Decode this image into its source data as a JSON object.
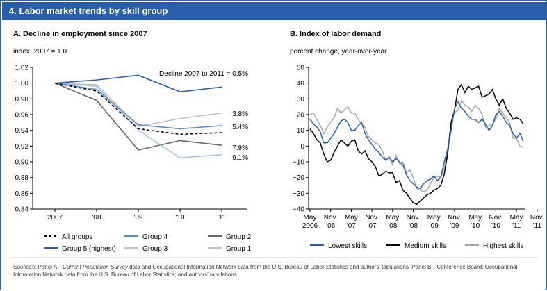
{
  "figure_title": "4. Labor market trends by skill group",
  "sources": {
    "prefix": "Sources:",
    "part1": " Panel A—",
    "italic": "Current Population Survey",
    "part2": " data and Occupational Information Network data from the U.S. Bureau of Labor Statistics and authors' tabulations. Panel B—Conference Board; Occupational Information Network data from the U.S. Bureau of Labor Statistics; and authors' tabulations."
  },
  "chart_data": [
    {
      "type": "line",
      "title": "A. Decline in employment since 2007",
      "unit_label": "index, 2007 = 1.0",
      "x": [
        2007,
        2008,
        2009,
        2010,
        2011
      ],
      "xticks": [
        "2007",
        "'08",
        "'09",
        "'10",
        "'11"
      ],
      "ylim": [
        0.84,
        1.02
      ],
      "yticks": [
        "1.02",
        "1.00",
        "0.98",
        "0.96",
        "0.94",
        "0.92",
        "0.90",
        "0.88",
        "0.86",
        "0.84"
      ],
      "annotations": [
        "Decline 2007 to 2011 = 0.5%",
        "3.8%",
        "5.4%",
        "7.9%",
        "9.1%"
      ],
      "series": [
        {
          "name": "All groups",
          "color": "#000000",
          "dash": "4,3",
          "values": [
            1.0,
            0.99,
            0.942,
            0.935,
            0.937
          ]
        },
        {
          "name": "Group 5 (highest)",
          "color": "#2a5ea8",
          "dash": "",
          "values": [
            1.0,
            1.004,
            1.01,
            0.989,
            0.995
          ]
        },
        {
          "name": "Group 4",
          "color": "#5b8ec9",
          "dash": "",
          "values": [
            1.0,
            0.992,
            0.947,
            0.942,
            0.946
          ]
        },
        {
          "name": "Group 3",
          "color": "#a9c4e6",
          "dash": "",
          "values": [
            1.0,
            0.996,
            0.94,
            0.905,
            0.909
          ]
        },
        {
          "name": "Group 2",
          "color": "#666666",
          "dash": "",
          "values": [
            1.0,
            0.978,
            0.915,
            0.927,
            0.921
          ]
        },
        {
          "name": "Group 1",
          "color": "#c4c4c4",
          "dash": "",
          "values": [
            1.0,
            0.998,
            0.945,
            0.955,
            0.962
          ]
        }
      ]
    },
    {
      "type": "line",
      "title": "B. Index of labor demand",
      "unit_label": "percent change, year-over-year",
      "xticks": [
        [
          "May",
          "2006"
        ],
        [
          "Nov.",
          "'06"
        ],
        [
          "May",
          "'07"
        ],
        [
          "Nov.",
          "'07"
        ],
        [
          "May",
          "'08"
        ],
        [
          "Nov.",
          "'08"
        ],
        [
          "May",
          "'09"
        ],
        [
          "Nov.",
          "'09"
        ],
        [
          "May",
          "'10"
        ],
        [
          "Nov.",
          "'10"
        ],
        [
          "May",
          "'11"
        ],
        [
          "Nov.",
          "'11"
        ]
      ],
      "ylim": [
        -40,
        50
      ],
      "yticks": [
        "50",
        "40",
        "30",
        "20",
        "10",
        "0",
        "−10",
        "−20",
        "−30",
        "−40"
      ],
      "series": [
        {
          "name": "Lowest skills",
          "color": "#2a5ea8",
          "values": [
            17,
            14,
            12,
            9,
            2,
            2,
            5,
            8,
            12,
            16,
            17,
            15,
            10,
            10,
            13,
            15,
            8,
            4,
            1,
            -2,
            -4,
            -7,
            -9,
            -7,
            -10,
            -8,
            -10,
            -12,
            -18,
            -22,
            -24,
            -26,
            -27,
            -24,
            -22,
            -21,
            -19,
            -22,
            -20,
            -10,
            -2,
            10,
            24,
            28,
            24,
            22,
            19,
            17,
            17,
            15,
            17,
            14,
            10,
            13,
            20,
            22,
            19,
            15,
            13,
            8,
            5,
            8,
            3
          ]
        },
        {
          "name": "Medium skills",
          "color": "#000000",
          "values": [
            11,
            8,
            4,
            2,
            -5,
            -10,
            -9,
            -4,
            0,
            4,
            2,
            0,
            3,
            4,
            -3,
            -5,
            -3,
            -8,
            -10,
            -13,
            -19,
            -18,
            -16,
            -17,
            -17,
            -23,
            -22,
            -28,
            -30,
            -33,
            -36,
            -37,
            -35,
            -33,
            -31,
            -30,
            -28,
            -27,
            -25,
            -18,
            -5,
            15,
            23,
            36,
            39,
            34,
            38,
            36,
            37,
            38,
            31,
            32,
            33,
            36,
            30,
            26,
            30,
            24,
            21,
            17,
            18,
            17,
            14
          ]
        },
        {
          "name": "Highest skills",
          "color": "#a6a6a6",
          "values": [
            20,
            21,
            17,
            13,
            8,
            12,
            15,
            18,
            24,
            21,
            23,
            25,
            21,
            21,
            17,
            14,
            12,
            6,
            4,
            2,
            1,
            -3,
            -9,
            -7,
            -12,
            -6,
            -11,
            -10,
            -17,
            -15,
            -20,
            -27,
            -28,
            -29,
            -28,
            -24,
            -20,
            -19,
            -20,
            -14,
            -3,
            15,
            21,
            23,
            29,
            26,
            25,
            22,
            26,
            24,
            20,
            12,
            13,
            14,
            17,
            24,
            21,
            18,
            15,
            5,
            5,
            0,
            -1
          ]
        }
      ]
    }
  ]
}
